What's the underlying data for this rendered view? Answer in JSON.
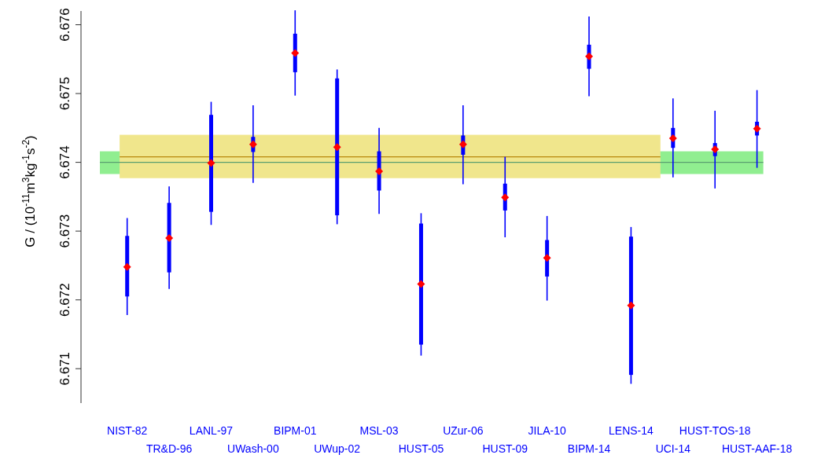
{
  "chart_data": {
    "type": "box",
    "ylabel": "G / (10$^{-11}$m$^{3}$kg$^{-1}$s$^{-2}$)",
    "categories": [
      "NIST-82",
      "TR&D-96",
      "LANL-97",
      "UWash-00",
      "BIPM-01",
      "UWup-02",
      "MSL-03",
      "HUST-05",
      "UZur-06",
      "HUST-09",
      "JILA-10",
      "BIPM-14",
      "LENS-14",
      "UCI-14",
      "HUST-TOS-18",
      "HUST-AAF-18"
    ],
    "color": "#0000ff",
    "boxes": [
      {
        "low": 6.67178,
        "q1": 6.67205,
        "median": 6.67248,
        "q3": 6.67293,
        "high": 6.67319
      },
      {
        "low": 6.67216,
        "q1": 6.6724,
        "median": 6.6729,
        "q3": 6.67341,
        "high": 6.67365
      },
      {
        "low": 6.67309,
        "q1": 6.67328,
        "median": 6.67399,
        "q3": 6.67469,
        "high": 6.67488
      },
      {
        "low": 6.6737,
        "q1": 6.67415,
        "median": 6.67426,
        "q3": 6.67437,
        "high": 6.67483
      },
      {
        "low": 6.67497,
        "q1": 6.67531,
        "median": 6.67559,
        "q3": 6.67587,
        "high": 6.67621
      },
      {
        "low": 6.6731,
        "q1": 6.67323,
        "median": 6.67422,
        "q3": 6.67522,
        "high": 6.67535
      },
      {
        "low": 6.67325,
        "q1": 6.67359,
        "median": 6.67387,
        "q3": 6.67416,
        "high": 6.6745
      },
      {
        "low": 6.67119,
        "q1": 6.67135,
        "median": 6.67223,
        "q3": 6.67311,
        "high": 6.67326
      },
      {
        "low": 6.67368,
        "q1": 6.67411,
        "median": 6.67426,
        "q3": 6.67439,
        "high": 6.67483
      },
      {
        "low": 6.67291,
        "q1": 6.6733,
        "median": 6.67349,
        "q3": 6.67369,
        "high": 6.67408
      },
      {
        "low": 6.67199,
        "q1": 6.67234,
        "median": 6.67261,
        "q3": 6.67287,
        "high": 6.67322
      },
      {
        "low": 6.67496,
        "q1": 6.67536,
        "median": 6.67554,
        "q3": 6.67571,
        "high": 6.67612
      },
      {
        "low": 6.67078,
        "q1": 6.67091,
        "median": 6.67192,
        "q3": 6.67292,
        "high": 6.67306
      },
      {
        "low": 6.67378,
        "q1": 6.67421,
        "median": 6.67435,
        "q3": 6.6745,
        "high": 6.67493
      },
      {
        "low": 6.67362,
        "q1": 6.67409,
        "median": 6.67419,
        "q3": 6.67428,
        "high": 6.67475
      },
      {
        "low": 6.67392,
        "q1": 6.67439,
        "median": 6.67449,
        "q3": 6.67459,
        "high": 6.67505
      }
    ],
    "ylim": [
      6.6705,
      6.6762
    ],
    "yticks": [
      6.671,
      6.672,
      6.673,
      6.674,
      6.675,
      6.676
    ],
    "bands": [
      {
        "axis": "y",
        "from": 6.67383,
        "to": 6.67416,
        "color": "#90ee90"
      },
      {
        "axis": "y",
        "from": 6.67377,
        "to": 6.6744,
        "color": "#f0e68c"
      }
    ],
    "ref_lines": [
      {
        "axis": "y",
        "value": 6.674,
        "color": "#5a9e6f"
      },
      {
        "axis": "y",
        "value": 6.67408,
        "color": "#b8860b"
      }
    ],
    "grid": false
  }
}
